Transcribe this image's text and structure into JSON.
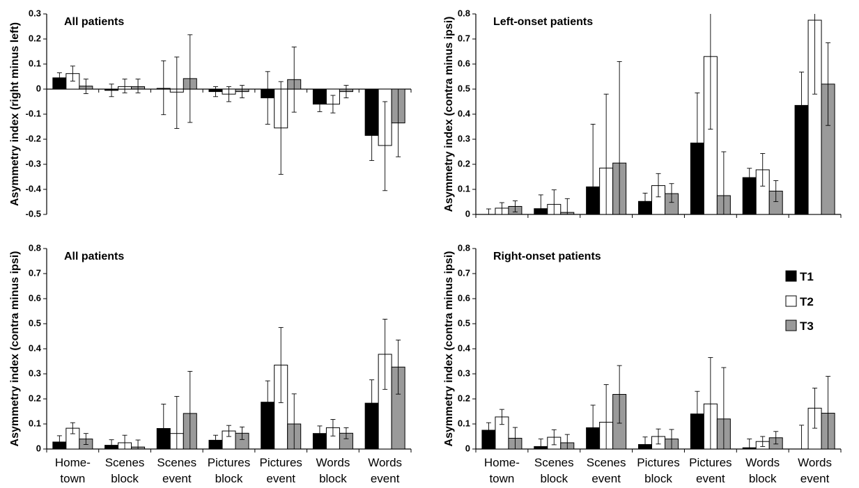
{
  "chart_data": [
    {
      "type": "bar",
      "title": "All patients",
      "ylabel": "Asymmetry index (right minus left)",
      "ylim": [
        -0.5,
        0.3
      ],
      "yticks": [
        "0.3",
        "0.2",
        "0.1",
        "0",
        "-0.1",
        "-0.2",
        "-0.3",
        "-0.4",
        "-0.5"
      ],
      "categories": [
        [
          "Home-",
          "town"
        ],
        [
          "Scenes",
          "block"
        ],
        [
          "Scenes",
          "event"
        ],
        [
          "Pictures",
          "block"
        ],
        [
          "Pictures",
          "event"
        ],
        [
          "Words",
          "block"
        ],
        [
          "Words",
          "event"
        ]
      ],
      "show_categories": false,
      "series": [
        {
          "name": "T1",
          "values": [
            0.045,
            -0.005,
            0.003,
            -0.01,
            -0.035,
            -0.06,
            -0.185
          ],
          "err_low": [
            0.025,
            0.025,
            0.105,
            0.02,
            0.105,
            0.03,
            0.1
          ],
          "err_high": [
            0.02,
            0.025,
            0.11,
            0.02,
            0.105,
            0.03,
            0.1
          ]
        },
        {
          "name": "T2",
          "values": [
            0.062,
            0.01,
            -0.012,
            -0.02,
            -0.155,
            -0.06,
            -0.225
          ],
          "err_low": [
            0.03,
            0.025,
            0.145,
            0.03,
            0.185,
            0.035,
            0.18
          ],
          "err_high": [
            0.03,
            0.03,
            0.14,
            0.03,
            0.185,
            0.035,
            0.175
          ]
        },
        {
          "name": "T3",
          "values": [
            0.012,
            0.01,
            0.042,
            -0.01,
            0.038,
            -0.01,
            -0.135
          ],
          "err_low": [
            0.03,
            0.025,
            0.175,
            0.025,
            0.13,
            0.025,
            0.135
          ],
          "err_high": [
            0.028,
            0.03,
            0.175,
            0.025,
            0.13,
            0.025,
            0.135
          ]
        }
      ]
    },
    {
      "type": "bar",
      "title": "Left-onset patients",
      "ylabel": "Asymmetry index (contra minus ipsi)",
      "ylim": [
        0,
        0.8
      ],
      "yticks": [
        "0.8",
        "0.7",
        "0.6",
        "0.5",
        "0.4",
        "0.3",
        "0.2",
        "0.1",
        "0"
      ],
      "categories": [
        [
          "Home-",
          "town"
        ],
        [
          "Scenes",
          "block"
        ],
        [
          "Scenes",
          "event"
        ],
        [
          "Pictures",
          "block"
        ],
        [
          "Pictures",
          "event"
        ],
        [
          "Words",
          "block"
        ],
        [
          "Words",
          "event"
        ]
      ],
      "show_categories": false,
      "series": [
        {
          "name": "T1",
          "values": [
            0.0,
            0.023,
            0.11,
            0.052,
            0.285,
            0.147,
            0.435
          ],
          "err_low": [
            0.0,
            0.023,
            0.11,
            0.03,
            0.2,
            0.035,
            0.13
          ],
          "err_high": [
            0.022,
            0.055,
            0.25,
            0.033,
            0.2,
            0.037,
            0.133
          ]
        },
        {
          "name": "T2",
          "values": [
            0.025,
            0.04,
            0.185,
            0.115,
            0.63,
            0.178,
            0.775
          ],
          "err_low": [
            0.025,
            0.04,
            0.185,
            0.045,
            0.29,
            0.065,
            0.295
          ],
          "err_high": [
            0.022,
            0.058,
            0.295,
            0.048,
            0.29,
            0.065,
            0.295
          ]
        },
        {
          "name": "T3",
          "values": [
            0.032,
            0.008,
            0.205,
            0.083,
            0.075,
            0.093,
            0.52
          ],
          "err_low": [
            0.022,
            0.008,
            0.205,
            0.035,
            0.075,
            0.042,
            0.165
          ],
          "err_high": [
            0.022,
            0.055,
            0.405,
            0.04,
            0.175,
            0.042,
            0.165
          ]
        }
      ]
    },
    {
      "type": "bar",
      "title": "All patients",
      "ylabel": "Asymmetry index (contra minus ipsi)",
      "ylim": [
        0,
        0.8
      ],
      "yticks": [
        "0.8",
        "0.7",
        "0.6",
        "0.5",
        "0.4",
        "0.3",
        "0.2",
        "0.1",
        "0"
      ],
      "categories": [
        [
          "Home-",
          "town"
        ],
        [
          "Scenes",
          "block"
        ],
        [
          "Scenes",
          "event"
        ],
        [
          "Pictures",
          "block"
        ],
        [
          "Pictures",
          "event"
        ],
        [
          "Words",
          "block"
        ],
        [
          "Words",
          "event"
        ]
      ],
      "show_categories": true,
      "series": [
        {
          "name": "T1",
          "values": [
            0.028,
            0.015,
            0.082,
            0.035,
            0.187,
            0.062,
            0.183
          ],
          "err_low": [
            0.025,
            0.015,
            0.082,
            0.02,
            0.085,
            0.03,
            0.093
          ],
          "err_high": [
            0.025,
            0.022,
            0.097,
            0.02,
            0.085,
            0.03,
            0.093
          ]
        },
        {
          "name": "T2",
          "values": [
            0.083,
            0.025,
            0.062,
            0.072,
            0.335,
            0.085,
            0.378
          ],
          "err_low": [
            0.022,
            0.025,
            0.062,
            0.022,
            0.15,
            0.033,
            0.14
          ],
          "err_high": [
            0.022,
            0.03,
            0.148,
            0.022,
            0.15,
            0.033,
            0.14
          ]
        },
        {
          "name": "T3",
          "values": [
            0.04,
            0.008,
            0.142,
            0.063,
            0.1,
            0.063,
            0.327
          ],
          "err_low": [
            0.022,
            0.008,
            0.142,
            0.025,
            0.1,
            0.022,
            0.108
          ],
          "err_high": [
            0.022,
            0.028,
            0.168,
            0.025,
            0.12,
            0.022,
            0.108
          ]
        }
      ]
    },
    {
      "type": "bar",
      "title": "Right-onset patients",
      "ylabel": "Asymmetry index (contra minus ipsi)",
      "ylim": [
        0,
        0.8
      ],
      "yticks": [
        "0.8",
        "0.7",
        "0.6",
        "0.5",
        "0.4",
        "0.3",
        "0.2",
        "0.1",
        "0"
      ],
      "categories": [
        [
          "Home-",
          "town"
        ],
        [
          "Scenes",
          "block"
        ],
        [
          "Scenes",
          "event"
        ],
        [
          "Pictures",
          "block"
        ],
        [
          "Pictures",
          "event"
        ],
        [
          "Words",
          "block"
        ],
        [
          "Words",
          "event"
        ]
      ],
      "show_categories": true,
      "series": [
        {
          "name": "T1",
          "values": [
            0.075,
            0.01,
            0.085,
            0.018,
            0.14,
            0.005,
            0.0
          ],
          "err_low": [
            0.03,
            0.01,
            0.085,
            0.018,
            0.09,
            0.005,
            0.0
          ],
          "err_high": [
            0.03,
            0.03,
            0.09,
            0.03,
            0.09,
            0.035,
            0.095
          ]
        },
        {
          "name": "T2",
          "values": [
            0.128,
            0.047,
            0.107,
            0.05,
            0.18,
            0.03,
            0.163
          ],
          "err_low": [
            0.03,
            0.03,
            0.107,
            0.03,
            0.18,
            0.02,
            0.08
          ],
          "err_high": [
            0.03,
            0.03,
            0.15,
            0.03,
            0.185,
            0.02,
            0.08
          ]
        },
        {
          "name": "T3",
          "values": [
            0.043,
            0.025,
            0.218,
            0.04,
            0.12,
            0.045,
            0.143
          ],
          "err_low": [
            0.043,
            0.025,
            0.115,
            0.04,
            0.12,
            0.025,
            0.143
          ],
          "err_high": [
            0.043,
            0.033,
            0.115,
            0.038,
            0.205,
            0.025,
            0.147
          ]
        }
      ]
    }
  ],
  "legend": {
    "items": [
      "T1",
      "T2",
      "T3"
    ],
    "colors": [
      "#000000",
      "#ffffff",
      "#9a9a9a"
    ],
    "edge_color": "#000000"
  }
}
